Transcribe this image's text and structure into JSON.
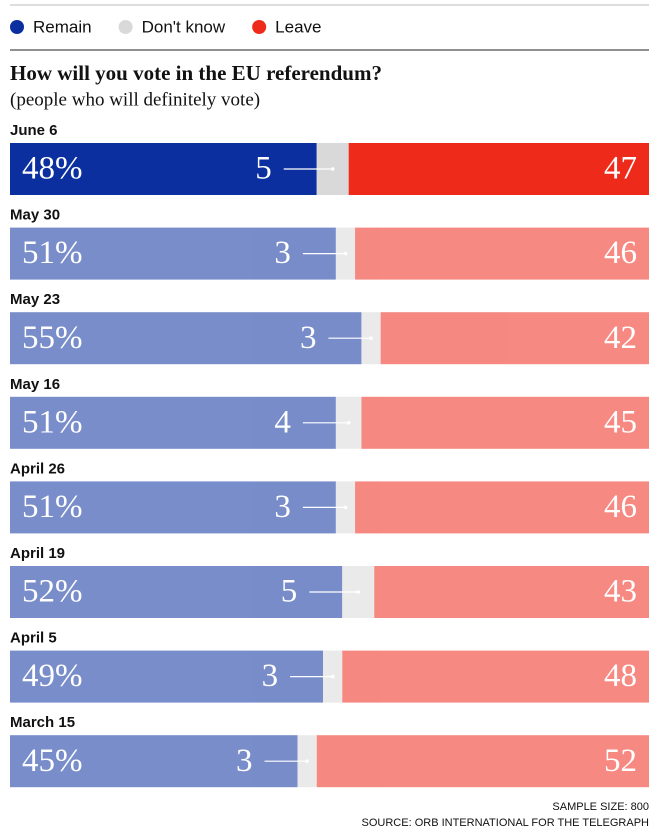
{
  "chart_data": {
    "type": "bar",
    "orientation": "horizontal",
    "stacked": true,
    "title": "How will you vote in the EU referendum?",
    "subtitle": "(people who will definitely vote)",
    "categories": [
      "June 6",
      "May 30",
      "May 23",
      "May 16",
      "April 26",
      "April 19",
      "April 5",
      "March 15"
    ],
    "series": [
      {
        "name": "Remain",
        "color": "#0b2f9e",
        "values": [
          48,
          51,
          55,
          51,
          51,
          52,
          49,
          45
        ],
        "value_labels": [
          "48%",
          "51%",
          "55%",
          "51%",
          "51%",
          "52%",
          "49%",
          "45%"
        ]
      },
      {
        "name": "Don't know",
        "color": "#d9d9d9",
        "values": [
          5,
          3,
          3,
          4,
          3,
          5,
          3,
          3
        ]
      },
      {
        "name": "Leave",
        "color": "#ee2a1b",
        "values": [
          47,
          46,
          42,
          45,
          46,
          43,
          48,
          52
        ]
      }
    ],
    "sample_size": "SAMPLE SIZE: 800",
    "source": "SOURCE: ORB INTERNATIONAL FOR THE TELEGRAPH"
  }
}
